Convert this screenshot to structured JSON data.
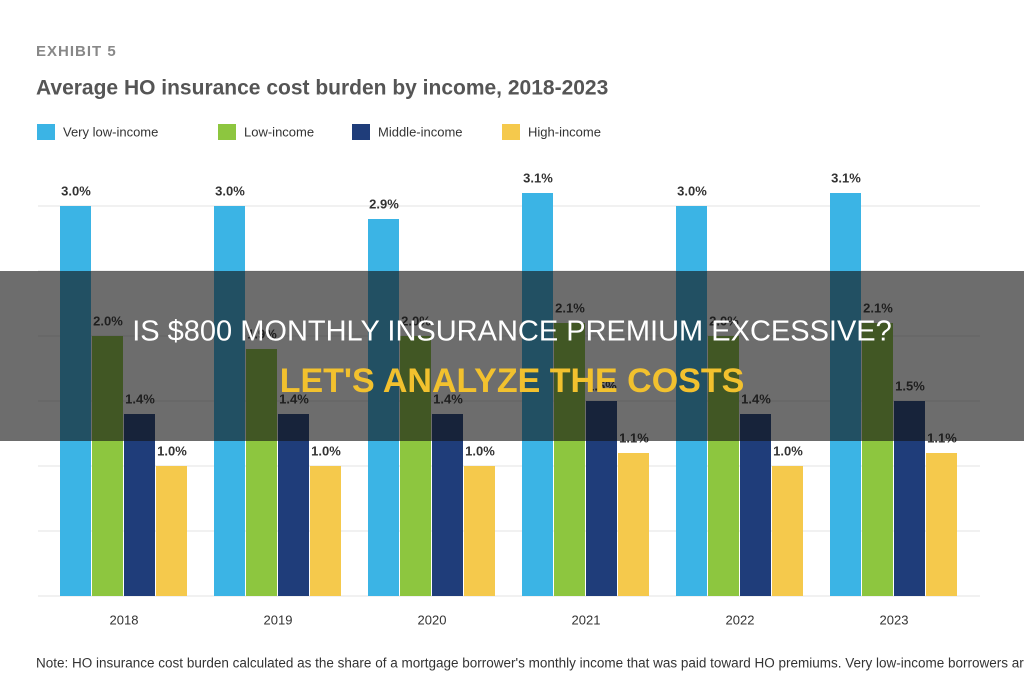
{
  "chart_data": {
    "type": "bar",
    "exhibit": "EXHIBIT 5",
    "title": "Average HO insurance cost burden by income, 2018-2023",
    "categories": [
      "2018",
      "2019",
      "2020",
      "2021",
      "2022",
      "2023"
    ],
    "series": [
      {
        "name": "Very low-income",
        "color": "#3bb4e5",
        "values": [
          3.0,
          3.0,
          2.9,
          3.1,
          3.0,
          3.1
        ],
        "value_labels": [
          "3.0%",
          "3.0%",
          "2.9%",
          "3.1%",
          "3.0%",
          "3.1%"
        ]
      },
      {
        "name": "Low-income",
        "color": "#8dc63f",
        "values": [
          2.0,
          1.9,
          2.0,
          2.1,
          2.0,
          2.1
        ],
        "value_labels": [
          "2.0%",
          "1.9%",
          "2.0%",
          "2.1%",
          "2.0%",
          "2.1%"
        ]
      },
      {
        "name": "Middle-income",
        "color": "#1f3d7a",
        "values": [
          1.4,
          1.4,
          1.4,
          1.5,
          1.4,
          1.5
        ],
        "value_labels": [
          "1.4%",
          "1.4%",
          "1.4%",
          "1.5%",
          "1.4%",
          "1.5%"
        ]
      },
      {
        "name": "High-income",
        "color": "#f5c94c",
        "values": [
          1.0,
          1.0,
          1.0,
          1.1,
          1.0,
          1.1
        ],
        "value_labels": [
          "1.0%",
          "1.0%",
          "1.0%",
          "1.1%",
          "1.0%",
          "1.1%"
        ]
      }
    ],
    "ylim": [
      0,
      3.3
    ],
    "yticks": [
      0,
      0.5,
      1,
      1.5,
      2,
      2.5,
      3
    ],
    "grid": true,
    "legend": "top",
    "note": "Note: HO insurance cost burden calculated as the share of a mortgage borrower's monthly income that was paid toward HO premiums. Very low-income borrowers are those with"
  },
  "overlay": {
    "headline": "IS $800 MONTHLY INSURANCE PREMIUM EXCESSIVE?",
    "subheadline": "LET'S ANALYZE THE COSTS"
  }
}
